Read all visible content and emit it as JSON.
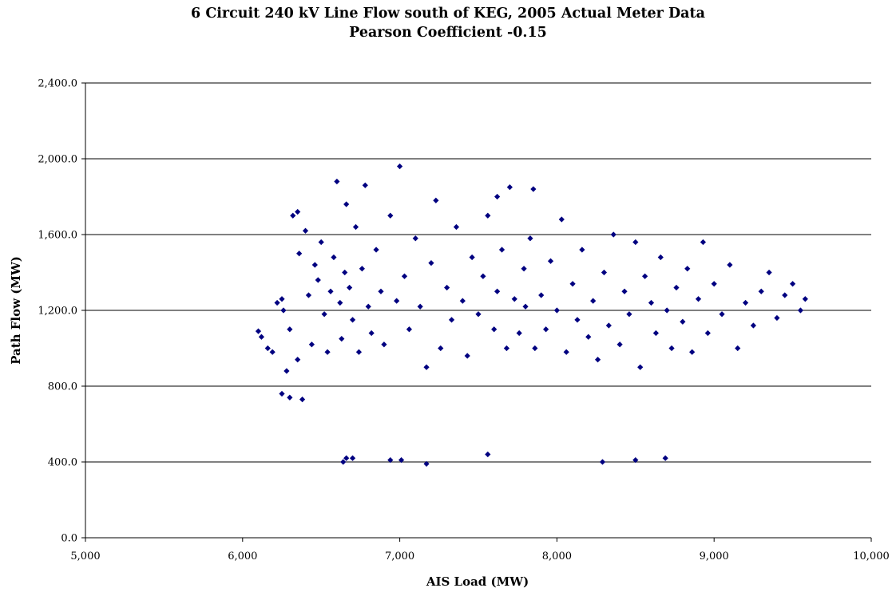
{
  "chart_data": {
    "type": "scatter",
    "title": "6 Circuit 240 kV Line Flow south of KEG, 2005 Actual Meter Data",
    "subtitle": "Pearson Coefficient -0.15",
    "xlabel": "AIS Load (MW)",
    "ylabel": "Path Flow (MW)",
    "xlim": [
      5000,
      10000
    ],
    "ylim": [
      0,
      2400
    ],
    "x_ticks": [
      5000,
      6000,
      7000,
      8000,
      9000,
      10000
    ],
    "x_tick_labels": [
      "5,000",
      "6,000",
      "7,000",
      "8,000",
      "9,000",
      "10,000"
    ],
    "y_ticks": [
      0,
      400,
      800,
      1200,
      1600,
      2000,
      2400
    ],
    "y_tick_labels": [
      "0.0",
      "400.0",
      "800.0",
      "1,200.0",
      "1,600.0",
      "2,000.0",
      "2,400.0"
    ],
    "grid": "horizontal",
    "legend": "none",
    "marker": "diamond",
    "marker_color": "#000080",
    "pearson_coefficient": -0.15,
    "series": [
      {
        "x": [
          6100,
          6120,
          6160,
          6190,
          6220,
          6250,
          6260,
          6280,
          6300,
          6320,
          6350,
          6360,
          6380,
          6400,
          6420,
          6440,
          6460,
          6480,
          6500,
          6520,
          6540,
          6560,
          6580,
          6600,
          6620,
          6630,
          6650,
          6660,
          6680,
          6700,
          6720,
          6740,
          6760,
          6780,
          6800,
          6820,
          6850,
          6880,
          6900,
          6940,
          6980,
          7000,
          7030,
          7060,
          7100,
          7130,
          7170,
          7200,
          7230,
          7260,
          7300,
          7330,
          7360,
          7400,
          7430,
          7460,
          7500,
          7530,
          7560,
          7600,
          7620,
          7650,
          7680,
          7700,
          7730,
          7760,
          7790,
          7800,
          7830,
          7860,
          7900,
          7930,
          7960,
          8000,
          8030,
          8060,
          8100,
          8130,
          8160,
          8200,
          8230,
          8260,
          8300,
          8330,
          8360,
          8400,
          8430,
          8460,
          8500,
          8530,
          8560,
          8600,
          8630,
          8660,
          8700,
          8730,
          8760,
          8800,
          8830,
          8860,
          8900,
          8930,
          8960,
          9000,
          9050,
          9100,
          9150,
          9200,
          9250,
          9300,
          9350,
          9400,
          9450,
          9500,
          9550,
          9580,
          6640,
          6700,
          7010,
          7170,
          6940,
          6660,
          8290,
          8500,
          8690,
          7560,
          6350,
          6300,
          6250,
          7620,
          7850
        ],
        "y": [
          1090,
          1060,
          1000,
          980,
          1240,
          760,
          1200,
          880,
          1100,
          1700,
          940,
          1500,
          730,
          1620,
          1280,
          1020,
          1440,
          1360,
          1560,
          1180,
          980,
          1300,
          1480,
          1880,
          1240,
          1050,
          1400,
          1760,
          1320,
          1150,
          1640,
          980,
          1420,
          1860,
          1220,
          1080,
          1520,
          1300,
          1020,
          1700,
          1250,
          1960,
          1380,
          1100,
          1580,
          1220,
          900,
          1450,
          1780,
          1000,
          1320,
          1150,
          1640,
          1250,
          960,
          1480,
          1180,
          1380,
          1700,
          1100,
          1300,
          1520,
          1000,
          1850,
          1260,
          1080,
          1420,
          1220,
          1580,
          1000,
          1280,
          1100,
          1460,
          1200,
          1680,
          980,
          1340,
          1150,
          1520,
          1060,
          1250,
          940,
          1400,
          1120,
          1600,
          1020,
          1300,
          1180,
          1560,
          900,
          1380,
          1240,
          1080,
          1480,
          1200,
          1000,
          1320,
          1140,
          1420,
          980,
          1260,
          1560,
          1080,
          1340,
          1180,
          1440,
          1000,
          1240,
          1120,
          1300,
          1400,
          1160,
          1280,
          1340,
          1200,
          1260,
          400,
          420,
          410,
          390,
          410,
          420,
          400,
          410,
          420,
          440,
          1720,
          740,
          1260,
          1800,
          1840
        ]
      }
    ]
  }
}
